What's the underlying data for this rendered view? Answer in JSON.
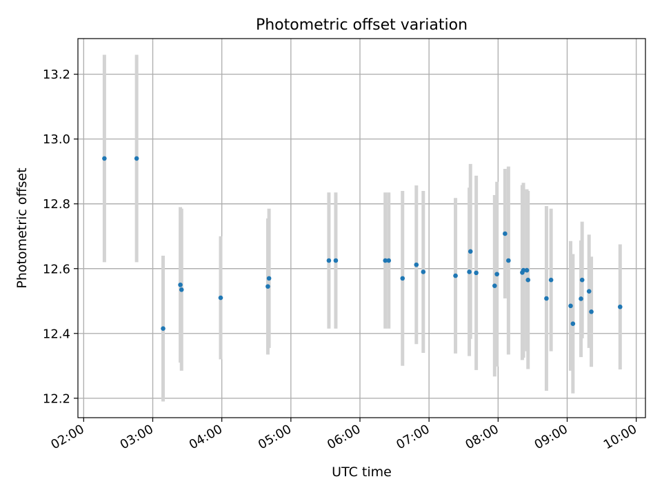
{
  "chart_data": {
    "type": "scatter",
    "title": "Photometric offset variation",
    "xlabel": "UTC time",
    "ylabel": "Photometric offset",
    "x_axis_type": "time",
    "xlim": [
      "01:55",
      "10:08"
    ],
    "ylim": [
      12.14,
      13.31
    ],
    "x_ticks": [
      "02:00",
      "03:00",
      "04:00",
      "05:00",
      "06:00",
      "07:00",
      "08:00",
      "09:00",
      "10:00"
    ],
    "y_ticks": [
      12.2,
      12.4,
      12.6,
      12.8,
      13.0,
      13.2
    ],
    "y_tick_labels": [
      "12.2",
      "12.4",
      "12.6",
      "12.8",
      "13.0",
      "13.2"
    ],
    "grid": true,
    "point_color": "#1f77b4",
    "errorbar_color": "#d3d3d3",
    "points": [
      {
        "x": "02:18",
        "y": 12.94,
        "yerr": 0.32
      },
      {
        "x": "02:46",
        "y": 12.94,
        "yerr": 0.32
      },
      {
        "x": "03:09",
        "y": 12.415,
        "yerr": 0.225
      },
      {
        "x": "03:24",
        "y": 12.55,
        "yerr": 0.24
      },
      {
        "x": "03:25",
        "y": 12.535,
        "yerr": 0.25
      },
      {
        "x": "03:59",
        "y": 12.51,
        "yerr": 0.19
      },
      {
        "x": "04:40",
        "y": 12.545,
        "yerr": 0.21
      },
      {
        "x": "04:41",
        "y": 12.57,
        "yerr": 0.215
      },
      {
        "x": "05:33",
        "y": 12.625,
        "yerr": 0.21
      },
      {
        "x": "05:39",
        "y": 12.625,
        "yerr": 0.21
      },
      {
        "x": "06:22",
        "y": 12.625,
        "yerr": 0.21
      },
      {
        "x": "06:25",
        "y": 12.625,
        "yerr": 0.21
      },
      {
        "x": "06:37",
        "y": 12.57,
        "yerr": 0.27
      },
      {
        "x": "06:49",
        "y": 12.612,
        "yerr": 0.245
      },
      {
        "x": "06:55",
        "y": 12.59,
        "yerr": 0.25
      },
      {
        "x": "07:23",
        "y": 12.578,
        "yerr": 0.24
      },
      {
        "x": "07:35",
        "y": 12.59,
        "yerr": 0.26
      },
      {
        "x": "07:36",
        "y": 12.653,
        "yerr": 0.27
      },
      {
        "x": "07:41",
        "y": 12.587,
        "yerr": 0.3
      },
      {
        "x": "07:57",
        "y": 12.547,
        "yerr": 0.28
      },
      {
        "x": "07:59",
        "y": 12.583,
        "yerr": 0.285
      },
      {
        "x": "08:06",
        "y": 12.708,
        "yerr": 0.2
      },
      {
        "x": "08:09",
        "y": 12.625,
        "yerr": 0.29
      },
      {
        "x": "08:21",
        "y": 12.588,
        "yerr": 0.27
      },
      {
        "x": "08:22",
        "y": 12.595,
        "yerr": 0.27
      },
      {
        "x": "08:25",
        "y": 12.595,
        "yerr": 0.25
      },
      {
        "x": "08:26",
        "y": 12.565,
        "yerr": 0.275
      },
      {
        "x": "08:42",
        "y": 12.508,
        "yerr": 0.285
      },
      {
        "x": "08:46",
        "y": 12.565,
        "yerr": 0.22
      },
      {
        "x": "09:03",
        "y": 12.485,
        "yerr": 0.2
      },
      {
        "x": "09:05",
        "y": 12.43,
        "yerr": 0.215
      },
      {
        "x": "09:12",
        "y": 12.507,
        "yerr": 0.18
      },
      {
        "x": "09:13",
        "y": 12.565,
        "yerr": 0.18
      },
      {
        "x": "09:19",
        "y": 12.53,
        "yerr": 0.175
      },
      {
        "x": "09:21",
        "y": 12.467,
        "yerr": 0.17
      },
      {
        "x": "09:46",
        "y": 12.482,
        "yerr": 0.193
      }
    ]
  }
}
